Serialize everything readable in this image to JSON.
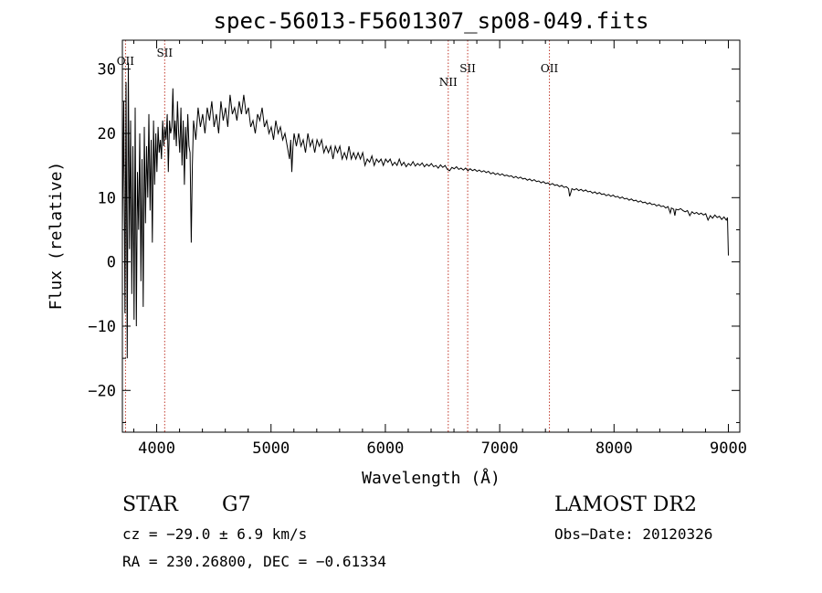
{
  "chart_data": {
    "type": "line",
    "title": "spec-56013-F5601307_sp08-049.fits",
    "xlabel": "Wavelength (Å)",
    "ylabel": "Flux (relative)",
    "xlim": [
      3700,
      9100
    ],
    "ylim": [
      -26.5,
      34.5
    ],
    "x_ticks": [
      4000,
      5000,
      6000,
      7000,
      8000,
      9000
    ],
    "y_ticks": [
      -20,
      -10,
      0,
      10,
      20,
      30
    ],
    "grid": false,
    "series": [
      {
        "values": [
          [
            3700,
            5
          ],
          [
            3712,
            25
          ],
          [
            3722,
            -8
          ],
          [
            3732,
            28
          ],
          [
            3742,
            -15
          ],
          [
            3752,
            31
          ],
          [
            3762,
            2
          ],
          [
            3772,
            22
          ],
          [
            3782,
            -5
          ],
          [
            3792,
            18
          ],
          [
            3802,
            -9
          ],
          [
            3812,
            24
          ],
          [
            3822,
            -10
          ],
          [
            3832,
            14
          ],
          [
            3842,
            5
          ],
          [
            3852,
            20
          ],
          [
            3862,
            -3
          ],
          [
            3872,
            16
          ],
          [
            3882,
            -7
          ],
          [
            3892,
            21
          ],
          [
            3902,
            6
          ],
          [
            3912,
            18
          ],
          [
            3922,
            10
          ],
          [
            3932,
            23
          ],
          [
            3942,
            8
          ],
          [
            3952,
            19
          ],
          [
            3962,
            3
          ],
          [
            3972,
            22
          ],
          [
            3982,
            12
          ],
          [
            3992,
            20
          ],
          [
            4002,
            14
          ],
          [
            4012,
            21
          ],
          [
            4022,
            17
          ],
          [
            4032,
            19
          ],
          [
            4042,
            16
          ],
          [
            4052,
            22
          ],
          [
            4062,
            18
          ],
          [
            4072,
            21
          ],
          [
            4082,
            19
          ],
          [
            4092,
            23
          ],
          [
            4102,
            14
          ],
          [
            4112,
            22
          ],
          [
            4122,
            20
          ],
          [
            4132,
            21
          ],
          [
            4142,
            27
          ],
          [
            4152,
            19
          ],
          [
            4162,
            22
          ],
          [
            4172,
            18
          ],
          [
            4182,
            25
          ],
          [
            4192,
            20
          ],
          [
            4202,
            17
          ],
          [
            4212,
            24
          ],
          [
            4222,
            15
          ],
          [
            4232,
            22
          ],
          [
            4242,
            12
          ],
          [
            4252,
            21
          ],
          [
            4262,
            16
          ],
          [
            4272,
            23
          ],
          [
            4282,
            18
          ],
          [
            4292,
            17
          ],
          [
            4302,
            3
          ],
          [
            4312,
            15
          ],
          [
            4322,
            22
          ],
          [
            4342,
            19
          ],
          [
            4362,
            24
          ],
          [
            4382,
            21
          ],
          [
            4402,
            23
          ],
          [
            4422,
            20
          ],
          [
            4442,
            24
          ],
          [
            4462,
            22
          ],
          [
            4482,
            25
          ],
          [
            4502,
            21
          ],
          [
            4522,
            23
          ],
          [
            4542,
            20
          ],
          [
            4562,
            25
          ],
          [
            4582,
            22
          ],
          [
            4602,
            24
          ],
          [
            4622,
            21
          ],
          [
            4642,
            26
          ],
          [
            4662,
            23
          ],
          [
            4682,
            24
          ],
          [
            4702,
            22
          ],
          [
            4722,
            25
          ],
          [
            4742,
            23
          ],
          [
            4762,
            26
          ],
          [
            4782,
            23
          ],
          [
            4802,
            24
          ],
          [
            4822,
            21
          ],
          [
            4842,
            22
          ],
          [
            4862,
            20
          ],
          [
            4882,
            23
          ],
          [
            4902,
            22
          ],
          [
            4922,
            24
          ],
          [
            4942,
            21
          ],
          [
            4962,
            22
          ],
          [
            4982,
            20
          ],
          [
            5002,
            21
          ],
          [
            5022,
            19
          ],
          [
            5042,
            22
          ],
          [
            5062,
            20
          ],
          [
            5082,
            21
          ],
          [
            5102,
            19
          ],
          [
            5122,
            20
          ],
          [
            5142,
            18
          ],
          [
            5162,
            16
          ],
          [
            5172,
            19
          ],
          [
            5182,
            14
          ],
          [
            5192,
            18
          ],
          [
            5202,
            20
          ],
          [
            5222,
            18
          ],
          [
            5242,
            20
          ],
          [
            5262,
            18
          ],
          [
            5282,
            19
          ],
          [
            5302,
            17
          ],
          [
            5322,
            20
          ],
          [
            5342,
            18
          ],
          [
            5362,
            19
          ],
          [
            5382,
            17
          ],
          [
            5402,
            19
          ],
          [
            5422,
            18
          ],
          [
            5442,
            19
          ],
          [
            5462,
            17
          ],
          [
            5482,
            18
          ],
          [
            5502,
            17
          ],
          [
            5522,
            18
          ],
          [
            5542,
            16
          ],
          [
            5562,
            18
          ],
          [
            5582,
            17
          ],
          [
            5602,
            18
          ],
          [
            5622,
            16
          ],
          [
            5642,
            17
          ],
          [
            5662,
            16
          ],
          [
            5682,
            18
          ],
          [
            5702,
            16
          ],
          [
            5722,
            17
          ],
          [
            5742,
            16
          ],
          [
            5762,
            17
          ],
          [
            5782,
            16
          ],
          [
            5802,
            17
          ],
          [
            5822,
            15
          ],
          [
            5842,
            16
          ],
          [
            5862,
            15.5
          ],
          [
            5882,
            16.5
          ],
          [
            5902,
            15
          ],
          [
            5922,
            16
          ],
          [
            5942,
            15.5
          ],
          [
            5962,
            16
          ],
          [
            5982,
            15
          ],
          [
            6002,
            16
          ],
          [
            6022,
            15.5
          ],
          [
            6042,
            16
          ],
          [
            6062,
            15
          ],
          [
            6082,
            15.5
          ],
          [
            6102,
            15
          ],
          [
            6122,
            16
          ],
          [
            6142,
            15
          ],
          [
            6162,
            15.5
          ],
          [
            6182,
            14.8
          ],
          [
            6202,
            15.3
          ],
          [
            6222,
            15
          ],
          [
            6242,
            15.6
          ],
          [
            6262,
            14.9
          ],
          [
            6282,
            15.3
          ],
          [
            6302,
            15
          ],
          [
            6322,
            15.4
          ],
          [
            6342,
            14.8
          ],
          [
            6362,
            15.2
          ],
          [
            6382,
            14.9
          ],
          [
            6402,
            15.3
          ],
          [
            6422,
            14.8
          ],
          [
            6442,
            15
          ],
          [
            6462,
            14.6
          ],
          [
            6482,
            15.1
          ],
          [
            6502,
            14.7
          ],
          [
            6522,
            15
          ],
          [
            6542,
            14.4
          ],
          [
            6562,
            14.2
          ],
          [
            6582,
            14.7
          ],
          [
            6602,
            14.5
          ],
          [
            6622,
            14.8
          ],
          [
            6642,
            14.4
          ],
          [
            6662,
            14.6
          ],
          [
            6682,
            14.3
          ],
          [
            6702,
            14.6
          ],
          [
            6722,
            14.2
          ],
          [
            6742,
            14.5
          ],
          [
            6762,
            14.2
          ],
          [
            6782,
            14.4
          ],
          [
            6802,
            14.1
          ],
          [
            6822,
            14.3
          ],
          [
            6842,
            14
          ],
          [
            6862,
            14.2
          ],
          [
            6882,
            13.9
          ],
          [
            6902,
            14.1
          ],
          [
            6922,
            13.7
          ],
          [
            6942,
            13.9
          ],
          [
            6962,
            13.6
          ],
          [
            6982,
            13.8
          ],
          [
            7002,
            13.5
          ],
          [
            7022,
            13.7
          ],
          [
            7042,
            13.4
          ],
          [
            7062,
            13.5
          ],
          [
            7082,
            13.3
          ],
          [
            7102,
            13.4
          ],
          [
            7122,
            13.1
          ],
          [
            7142,
            13.3
          ],
          [
            7162,
            13
          ],
          [
            7182,
            13.2
          ],
          [
            7202,
            12.9
          ],
          [
            7222,
            13
          ],
          [
            7242,
            12.7
          ],
          [
            7262,
            12.9
          ],
          [
            7282,
            12.6
          ],
          [
            7302,
            12.8
          ],
          [
            7322,
            12.5
          ],
          [
            7342,
            12.6
          ],
          [
            7362,
            12.3
          ],
          [
            7382,
            12.5
          ],
          [
            7402,
            12.2
          ],
          [
            7422,
            12.3
          ],
          [
            7442,
            12
          ],
          [
            7462,
            12.2
          ],
          [
            7482,
            11.9
          ],
          [
            7502,
            12
          ],
          [
            7522,
            11.7
          ],
          [
            7542,
            11.9
          ],
          [
            7562,
            11.6
          ],
          [
            7582,
            11.7
          ],
          [
            7602,
            11.4
          ],
          [
            7612,
            10.2
          ],
          [
            7622,
            10.8
          ],
          [
            7632,
            11.4
          ],
          [
            7652,
            11.2
          ],
          [
            7672,
            11.4
          ],
          [
            7692,
            11.1
          ],
          [
            7712,
            11.3
          ],
          [
            7732,
            11
          ],
          [
            7752,
            11.2
          ],
          [
            7772,
            10.9
          ],
          [
            7792,
            11
          ],
          [
            7812,
            10.7
          ],
          [
            7832,
            10.9
          ],
          [
            7852,
            10.6
          ],
          [
            7872,
            10.8
          ],
          [
            7892,
            10.5
          ],
          [
            7912,
            10.6
          ],
          [
            7932,
            10.3
          ],
          [
            7952,
            10.5
          ],
          [
            7972,
            10.2
          ],
          [
            7992,
            10.4
          ],
          [
            8012,
            10.1
          ],
          [
            8032,
            10.2
          ],
          [
            8052,
            9.9
          ],
          [
            8072,
            10.1
          ],
          [
            8092,
            9.8
          ],
          [
            8112,
            9.9
          ],
          [
            8132,
            9.6
          ],
          [
            8152,
            9.8
          ],
          [
            8172,
            9.5
          ],
          [
            8192,
            9.6
          ],
          [
            8212,
            9.3
          ],
          [
            8232,
            9.5
          ],
          [
            8252,
            9.2
          ],
          [
            8272,
            9.3
          ],
          [
            8292,
            9
          ],
          [
            8312,
            9.2
          ],
          [
            8332,
            8.9
          ],
          [
            8352,
            9
          ],
          [
            8372,
            8.7
          ],
          [
            8392,
            8.9
          ],
          [
            8412,
            8.6
          ],
          [
            8432,
            8.7
          ],
          [
            8452,
            8.4
          ],
          [
            8472,
            8.6
          ],
          [
            8492,
            7.6
          ],
          [
            8502,
            8.4
          ],
          [
            8522,
            8.2
          ],
          [
            8532,
            7.2
          ],
          [
            8542,
            8.2
          ],
          [
            8562,
            8.1
          ],
          [
            8582,
            8.3
          ],
          [
            8602,
            8
          ],
          [
            8622,
            7.8
          ],
          [
            8642,
            8
          ],
          [
            8662,
            7.2
          ],
          [
            8682,
            7.8
          ],
          [
            8702,
            7.5
          ],
          [
            8722,
            7.7
          ],
          [
            8742,
            7.4
          ],
          [
            8762,
            7.6
          ],
          [
            8782,
            7.3
          ],
          [
            8802,
            7.5
          ],
          [
            8822,
            6.5
          ],
          [
            8842,
            7.2
          ],
          [
            8862,
            6.8
          ],
          [
            8882,
            7.3
          ],
          [
            8902,
            6.9
          ],
          [
            8922,
            7.1
          ],
          [
            8942,
            6.6
          ],
          [
            8962,
            7
          ],
          [
            8982,
            6.5
          ],
          [
            8992,
            6.9
          ],
          [
            9000,
            1
          ]
        ]
      }
    ],
    "line_markers": [
      {
        "label": "OII",
        "x": 3727
      },
      {
        "label": "SII",
        "x": 4070
      },
      {
        "label": "NII",
        "x": 6550
      },
      {
        "label": "SII",
        "x": 6720
      },
      {
        "label": "OII",
        "x": 7435
      }
    ],
    "info": {
      "obj_class": "STAR",
      "subclass": "G7",
      "survey": "LAMOST DR2",
      "cz_line": "cz = −29.0 ± 6.9 km/s",
      "obs_date": "Obs−Date: 20120326",
      "coord_line": "RA = 230.26800, DEC =  −0.61334"
    },
    "colors": {
      "line_marker": "#c0392b",
      "spectrum": "#000000"
    }
  }
}
